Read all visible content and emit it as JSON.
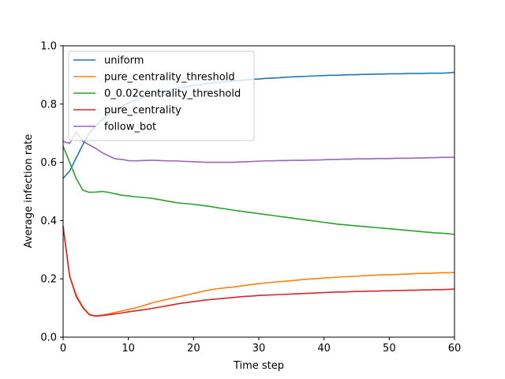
{
  "chart_data": {
    "type": "line",
    "xlabel": "Time step",
    "ylabel": "Average infection rate",
    "xlim": [
      0,
      60
    ],
    "ylim": [
      0.0,
      1.0
    ],
    "xticks": [
      "0",
      "10",
      "20",
      "30",
      "40",
      "50",
      "60"
    ],
    "yticks": [
      "0.0",
      "0.2",
      "0.4",
      "0.6",
      "0.8",
      "1.0"
    ],
    "grid": false,
    "legend_position": "upper-left",
    "x": [
      0,
      1,
      2,
      3,
      4,
      5,
      6,
      7,
      8,
      9,
      10,
      11,
      12,
      13,
      14,
      15,
      16,
      17,
      18,
      19,
      20,
      21,
      22,
      23,
      24,
      25,
      26,
      27,
      28,
      29,
      30,
      31,
      32,
      33,
      34,
      35,
      36,
      37,
      38,
      39,
      40,
      41,
      42,
      43,
      44,
      45,
      46,
      47,
      48,
      49,
      50,
      51,
      52,
      53,
      54,
      55,
      56,
      57,
      58,
      59,
      60
    ],
    "series": [
      {
        "name": "uniform",
        "color": "#1f77b4",
        "values": [
          0.545,
          0.57,
          0.615,
          0.66,
          0.7,
          0.725,
          0.748,
          0.765,
          0.78,
          0.793,
          0.803,
          0.812,
          0.82,
          0.828,
          0.835,
          0.841,
          0.847,
          0.852,
          0.856,
          0.86,
          0.864,
          0.867,
          0.87,
          0.872,
          0.875,
          0.877,
          0.879,
          0.881,
          0.883,
          0.885,
          0.886,
          0.888,
          0.889,
          0.89,
          0.892,
          0.893,
          0.894,
          0.895,
          0.896,
          0.897,
          0.898,
          0.899,
          0.899,
          0.9,
          0.901,
          0.901,
          0.902,
          0.902,
          0.903,
          0.903,
          0.904,
          0.904,
          0.904,
          0.905,
          0.905,
          0.905,
          0.906,
          0.906,
          0.906,
          0.907,
          0.909
        ]
      },
      {
        "name": "pure_centrality_threshold",
        "color": "#ff7f0e",
        "values": [
          0.38,
          0.21,
          0.145,
          0.105,
          0.078,
          0.073,
          0.076,
          0.08,
          0.085,
          0.09,
          0.095,
          0.1,
          0.106,
          0.113,
          0.12,
          0.125,
          0.13,
          0.135,
          0.14,
          0.145,
          0.15,
          0.155,
          0.16,
          0.164,
          0.167,
          0.17,
          0.172,
          0.175,
          0.178,
          0.181,
          0.183,
          0.186,
          0.188,
          0.19,
          0.192,
          0.194,
          0.196,
          0.198,
          0.2,
          0.201,
          0.203,
          0.204,
          0.206,
          0.207,
          0.208,
          0.209,
          0.211,
          0.212,
          0.213,
          0.214,
          0.214,
          0.215,
          0.216,
          0.217,
          0.218,
          0.219,
          0.219,
          0.22,
          0.221,
          0.221,
          0.222
        ]
      },
      {
        "name": "0_0.02centrality_threshold",
        "color": "#2ca02c",
        "values": [
          0.655,
          0.6,
          0.545,
          0.505,
          0.497,
          0.498,
          0.5,
          0.497,
          0.492,
          0.487,
          0.485,
          0.482,
          0.48,
          0.478,
          0.475,
          0.471,
          0.467,
          0.463,
          0.46,
          0.458,
          0.456,
          0.453,
          0.45,
          0.447,
          0.443,
          0.44,
          0.436,
          0.433,
          0.43,
          0.427,
          0.424,
          0.421,
          0.418,
          0.415,
          0.412,
          0.409,
          0.406,
          0.403,
          0.4,
          0.397,
          0.394,
          0.391,
          0.388,
          0.386,
          0.384,
          0.382,
          0.38,
          0.378,
          0.376,
          0.374,
          0.372,
          0.37,
          0.368,
          0.366,
          0.364,
          0.362,
          0.36,
          0.358,
          0.357,
          0.355,
          0.353
        ]
      },
      {
        "name": "pure_centrality",
        "color": "#d62728",
        "values": [
          0.38,
          0.21,
          0.14,
          0.102,
          0.077,
          0.072,
          0.074,
          0.077,
          0.08,
          0.083,
          0.087,
          0.09,
          0.093,
          0.096,
          0.1,
          0.104,
          0.108,
          0.112,
          0.116,
          0.119,
          0.122,
          0.125,
          0.128,
          0.13,
          0.132,
          0.134,
          0.136,
          0.138,
          0.14,
          0.141,
          0.143,
          0.144,
          0.145,
          0.146,
          0.147,
          0.148,
          0.149,
          0.15,
          0.151,
          0.152,
          0.153,
          0.154,
          0.155,
          0.155,
          0.156,
          0.157,
          0.157,
          0.158,
          0.158,
          0.159,
          0.159,
          0.16,
          0.16,
          0.161,
          0.161,
          0.162,
          0.162,
          0.163,
          0.163,
          0.164,
          0.165
        ]
      },
      {
        "name": "follow_bot",
        "color": "#9467bd",
        "values": [
          0.672,
          0.665,
          0.705,
          0.672,
          0.66,
          0.648,
          0.633,
          0.622,
          0.612,
          0.61,
          0.606,
          0.605,
          0.606,
          0.607,
          0.607,
          0.606,
          0.605,
          0.605,
          0.604,
          0.603,
          0.602,
          0.601,
          0.6,
          0.6,
          0.6,
          0.6,
          0.6,
          0.601,
          0.602,
          0.603,
          0.604,
          0.605,
          0.605,
          0.606,
          0.606,
          0.607,
          0.607,
          0.607,
          0.608,
          0.608,
          0.609,
          0.61,
          0.61,
          0.611,
          0.611,
          0.612,
          0.612,
          0.612,
          0.613,
          0.613,
          0.613,
          0.614,
          0.614,
          0.614,
          0.615,
          0.615,
          0.616,
          0.616,
          0.617,
          0.617,
          0.617
        ]
      }
    ]
  }
}
